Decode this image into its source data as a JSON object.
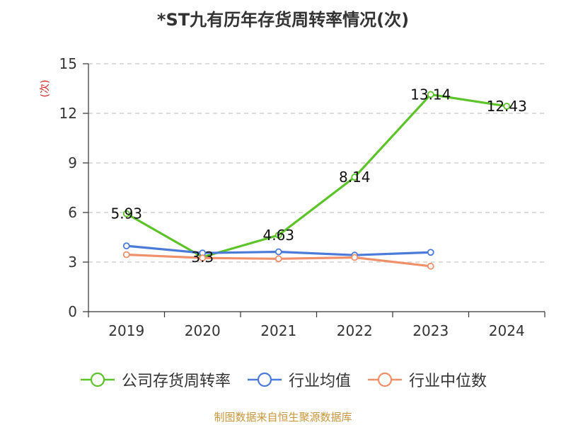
{
  "chart_data": {
    "type": "line",
    "title": "*ST九有历年存货周转率情况(次)",
    "ylabel": "(次)",
    "ylim": [
      0,
      15
    ],
    "yticks": [
      0,
      3,
      6,
      9,
      12,
      15
    ],
    "categories": [
      "2019",
      "2020",
      "2021",
      "2022",
      "2023",
      "2024"
    ],
    "grid": true,
    "legend_position": "bottom",
    "series": [
      {
        "name": "公司存货周转率",
        "color": "#5cc329",
        "values": [
          5.93,
          3.3,
          4.63,
          8.14,
          13.14,
          12.43
        ],
        "labels": [
          "5.93",
          "3.3",
          "4.63",
          "8.14",
          "13.14",
          "12.43"
        ]
      },
      {
        "name": "行业均值",
        "color": "#4a7bd8",
        "values": [
          3.98,
          3.55,
          3.62,
          3.42,
          3.59,
          null
        ]
      },
      {
        "name": "行业中位数",
        "color": "#f0906a",
        "values": [
          3.45,
          3.25,
          3.2,
          3.28,
          2.75,
          null
        ]
      }
    ]
  },
  "source": {
    "text": "制图数据来自恒生聚源数据库",
    "color": "#c8963c"
  },
  "ylabel_color": "#d02020"
}
